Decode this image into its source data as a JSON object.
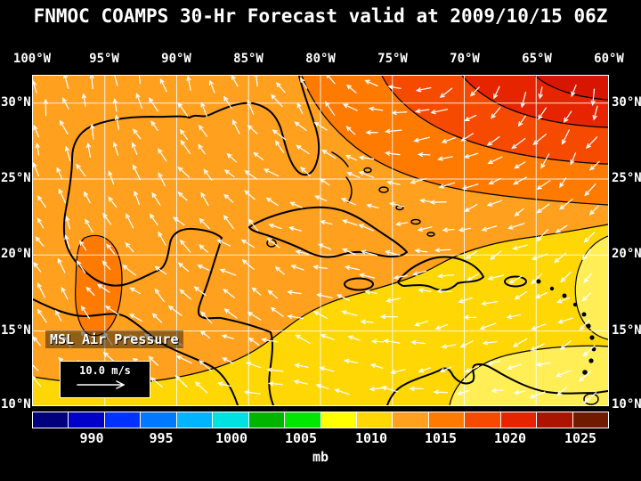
{
  "title": "FNMOC COAMPS 30-Hr Forecast valid at 2009/10/15 06Z",
  "map": {
    "field_label": "MSL Air Pressure",
    "wind_scale_label": "10.0 m/s",
    "lon_labels": [
      "100°W",
      "95°W",
      "90°W",
      "85°W",
      "80°W",
      "75°W",
      "70°W",
      "65°W",
      "60°W"
    ],
    "lat_labels": [
      "30°N",
      "25°N",
      "20°N",
      "15°N",
      "10°N"
    ]
  },
  "colorbar": {
    "unit": "mb",
    "tick_labels": [
      "990",
      "995",
      "1000",
      "1005",
      "1010",
      "1015",
      "1020",
      "1025"
    ],
    "segment_colors": [
      "#00007D",
      "#0000C8",
      "#0032FF",
      "#0078FF",
      "#00B4FF",
      "#00E1E1",
      "#00B400",
      "#00E600",
      "#FFFF00",
      "#FFD705",
      "#FFA01E",
      "#FF7A00",
      "#F64A00",
      "#E62500",
      "#AA1400",
      "#701A00"
    ]
  },
  "colors": {
    "background": "#000000",
    "text": "#FFFFFF",
    "grid": "#FFFFFF",
    "coastline": "#000000",
    "wind_arrows": "#FFFFFF",
    "pressure_1010_1015": "#FFA01E",
    "pressure_1005_1010": "#FFD705",
    "pressure_1000_1005": "#FFEE55",
    "pressure_1015_1020": "#FF7A00",
    "pressure_1020_1025": "#F64A00",
    "pressure_over_1025": "#E62500",
    "pressure_corner_max": "#D81500"
  },
  "chart_data": {
    "type": "heatmap",
    "title": "FNMOC COAMPS 30-Hr Forecast valid at 2009/10/15 06Z",
    "field": "MSL Air Pressure",
    "unit": "mb",
    "colorbar_ticks": [
      990,
      995,
      1000,
      1005,
      1010,
      1015,
      1020,
      1025
    ],
    "lon_ticks_deg_w": [
      100,
      95,
      90,
      85,
      80,
      75,
      70,
      65,
      60
    ],
    "lat_ticks_deg_n": [
      30,
      25,
      20,
      15,
      10
    ],
    "wind_reference_speed": "10.0 m/s",
    "legend_position": "bottom",
    "pattern_summary": "High pressure (1015 to over 1025 mb, orange to red) over the northwest Atlantic at top right; 1010-1015 mb (orange) over the Gulf of Mexico; 1005-1010 mb (yellow) across the Caribbean and tropical Atlantic; white wind vectors show clockwise flow around the high with easterly trades in the south"
  }
}
